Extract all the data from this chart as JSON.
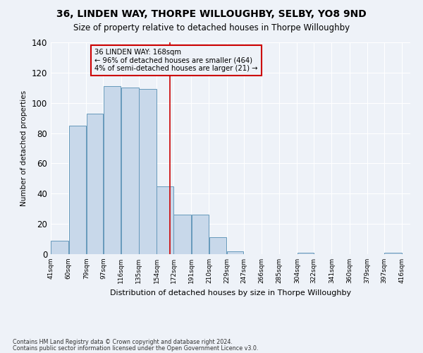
{
  "title": "36, LINDEN WAY, THORPE WILLOUGHBY, SELBY, YO8 9ND",
  "subtitle": "Size of property relative to detached houses in Thorpe Willoughby",
  "xlabel": "Distribution of detached houses by size in Thorpe Willoughby",
  "ylabel": "Number of detached properties",
  "footnote1": "Contains HM Land Registry data © Crown copyright and database right 2024.",
  "footnote2": "Contains public sector information licensed under the Open Government Licence v3.0.",
  "annotation_line1": "36 LINDEN WAY: 168sqm",
  "annotation_line2": "← 96% of detached houses are smaller (464)",
  "annotation_line3": "4% of semi-detached houses are larger (21) →",
  "bar_centers": [
    50.5,
    69.5,
    88,
    106.5,
    125.5,
    144.5,
    163,
    181.5,
    200.5,
    219.5,
    238,
    256.5,
    275.5,
    294.5,
    313,
    331.5,
    350.5,
    369.5,
    388,
    406.5
  ],
  "bar_widths": [
    19,
    19,
    18,
    19,
    19,
    19,
    18,
    19,
    19,
    19,
    18,
    19,
    19,
    19,
    18,
    19,
    19,
    19,
    18,
    19
  ],
  "bar_heights": [
    9,
    85,
    93,
    111,
    110,
    109,
    45,
    26,
    26,
    11,
    2,
    0,
    0,
    0,
    1,
    0,
    0,
    0,
    0,
    1
  ],
  "tick_labels": [
    "41sqm",
    "60sqm",
    "79sqm",
    "97sqm",
    "116sqm",
    "135sqm",
    "154sqm",
    "172sqm",
    "191sqm",
    "210sqm",
    "229sqm",
    "247sqm",
    "266sqm",
    "285sqm",
    "304sqm",
    "322sqm",
    "341sqm",
    "360sqm",
    "379sqm",
    "397sqm",
    "416sqm"
  ],
  "tick_positions": [
    41,
    60,
    79,
    97,
    116,
    135,
    154,
    172,
    191,
    210,
    229,
    247,
    266,
    285,
    304,
    322,
    341,
    360,
    379,
    397,
    416
  ],
  "bar_color": "#c8d8ea",
  "bar_edge_color": "#6699bb",
  "vline_color": "#cc0000",
  "vline_x": 168,
  "background_color": "#eef2f8",
  "grid_color": "#ffffff",
  "ylim": [
    0,
    140
  ],
  "yticks": [
    0,
    20,
    40,
    60,
    80,
    100,
    120,
    140
  ],
  "xlim": [
    41,
    425
  ],
  "title_fontsize": 10,
  "subtitle_fontsize": 8.5
}
